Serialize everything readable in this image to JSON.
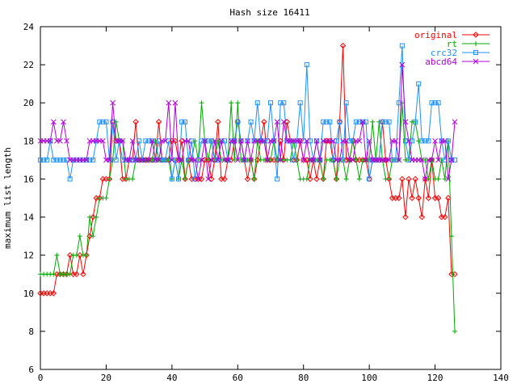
{
  "chart_data": {
    "type": "line",
    "title": "Hash size 16411",
    "xlabel": "",
    "ylabel": "maximum list length",
    "xlim": [
      0,
      140
    ],
    "ylim": [
      6,
      24
    ],
    "xticks": [
      0,
      20,
      40,
      60,
      80,
      100,
      120,
      140
    ],
    "yticks": [
      6,
      8,
      10,
      12,
      14,
      16,
      18,
      20,
      22,
      24
    ],
    "grid": false,
    "legend_position": "top-right",
    "series": [
      {
        "name": "original",
        "color": "#ff0000",
        "marker": "diamond",
        "values": [
          10,
          10,
          10,
          10,
          10,
          11,
          11,
          11,
          11,
          12,
          11,
          11,
          12,
          11,
          12,
          13,
          14,
          15,
          15,
          16,
          16,
          16,
          19,
          18,
          18,
          16,
          16,
          17,
          17,
          19,
          17,
          17,
          17,
          17,
          17,
          17,
          19,
          17,
          17,
          17,
          18,
          18,
          17,
          18,
          16,
          17,
          16,
          16,
          16,
          16,
          17,
          17,
          16,
          17,
          19,
          16,
          16,
          17,
          17,
          18,
          19,
          18,
          17,
          16,
          17,
          16,
          17,
          18,
          19,
          17,
          17,
          17,
          17,
          18,
          17,
          19,
          18,
          17,
          17,
          18,
          17,
          17,
          16,
          17,
          16,
          17,
          16,
          18,
          18,
          17,
          16,
          19,
          23,
          17,
          17,
          18,
          17,
          17,
          17,
          17,
          16,
          17,
          17,
          17,
          19,
          17,
          16,
          15,
          15,
          15,
          16,
          14,
          16,
          15,
          16,
          15,
          14,
          16,
          15,
          17,
          15,
          15,
          14,
          14,
          15,
          11,
          11
        ],
        "values_start_x": 0
      },
      {
        "name": "rt",
        "color": "#00aa00",
        "marker": "plus",
        "values": [
          11,
          11,
          11,
          11,
          11,
          12,
          11,
          11,
          11,
          11,
          12,
          12,
          13,
          12,
          12,
          14,
          13,
          14,
          15,
          15,
          15,
          16,
          17,
          19,
          18,
          18,
          16,
          16,
          16,
          17,
          17,
          17,
          17,
          17,
          17,
          18,
          17,
          17,
          17,
          17,
          16,
          17,
          16,
          17,
          16,
          17,
          17,
          18,
          17,
          20,
          18,
          17,
          18,
          17,
          18,
          17,
          17,
          17,
          20,
          17,
          20,
          17,
          17,
          17,
          17,
          16,
          18,
          17,
          17,
          17,
          17,
          18,
          17,
          17,
          17,
          17,
          17,
          18,
          17,
          16,
          16,
          16,
          17,
          17,
          17,
          17,
          16,
          17,
          17,
          17,
          16,
          17,
          17,
          16,
          17,
          18,
          17,
          16,
          17,
          17,
          17,
          19,
          17,
          19,
          17,
          16,
          16,
          17,
          17,
          17,
          20,
          17,
          17,
          19,
          19,
          18,
          17,
          17,
          16,
          17,
          16,
          16,
          17,
          16,
          18,
          13,
          8
        ],
        "values_start_x": 0
      },
      {
        "name": "crc32",
        "color": "#1e90ff",
        "marker": "square",
        "values": [
          17,
          17,
          17,
          18,
          17,
          17,
          17,
          17,
          17,
          16,
          17,
          17,
          17,
          17,
          17,
          17,
          17,
          18,
          19,
          19,
          19,
          17,
          19,
          17,
          18,
          17,
          17,
          17,
          17,
          17,
          18,
          17,
          18,
          18,
          18,
          17,
          18,
          17,
          17,
          18,
          16,
          17,
          16,
          19,
          19,
          17,
          18,
          16,
          17,
          18,
          18,
          18,
          18,
          17,
          17,
          18,
          18,
          17,
          18,
          18,
          19,
          18,
          17,
          18,
          19,
          18,
          20,
          18,
          18,
          18,
          20,
          18,
          16,
          20,
          20,
          18,
          18,
          17,
          18,
          20,
          18,
          22,
          18,
          17,
          18,
          17,
          19,
          19,
          19,
          17,
          18,
          19,
          17,
          20,
          18,
          18,
          19,
          19,
          19,
          19,
          16,
          17,
          17,
          17,
          19,
          19,
          19,
          17,
          17,
          20,
          23,
          18,
          17,
          18,
          19,
          21,
          18,
          18,
          18,
          20,
          20,
          20,
          18,
          17,
          18,
          17,
          17
        ],
        "values_start_x": 0
      },
      {
        "name": "abcd64",
        "color": "#b000d8",
        "marker": "x",
        "values": [
          18,
          18,
          18,
          18,
          19,
          18,
          18,
          19,
          18,
          17,
          17,
          17,
          17,
          17,
          17,
          18,
          18,
          18,
          18,
          18,
          17,
          17,
          20,
          18,
          18,
          18,
          17,
          17,
          18,
          17,
          17,
          17,
          17,
          17,
          18,
          17,
          17,
          18,
          18,
          20,
          17,
          20,
          17,
          17,
          18,
          18,
          17,
          17,
          16,
          17,
          18,
          16,
          17,
          18,
          17,
          18,
          17,
          17,
          18,
          18,
          17,
          18,
          17,
          18,
          17,
          18,
          18,
          18,
          18,
          17,
          18,
          18,
          19,
          17,
          19,
          18,
          18,
          18,
          18,
          18,
          17,
          18,
          17,
          17,
          18,
          17,
          18,
          18,
          18,
          18,
          17,
          17,
          18,
          18,
          17,
          17,
          18,
          18,
          19,
          17,
          18,
          17,
          17,
          17,
          17,
          17,
          17,
          18,
          18,
          17,
          22,
          19,
          18,
          17,
          17,
          17,
          17,
          16,
          17,
          17,
          18,
          17,
          18,
          18,
          16,
          17,
          19
        ],
        "values_start_x": 0
      }
    ]
  }
}
